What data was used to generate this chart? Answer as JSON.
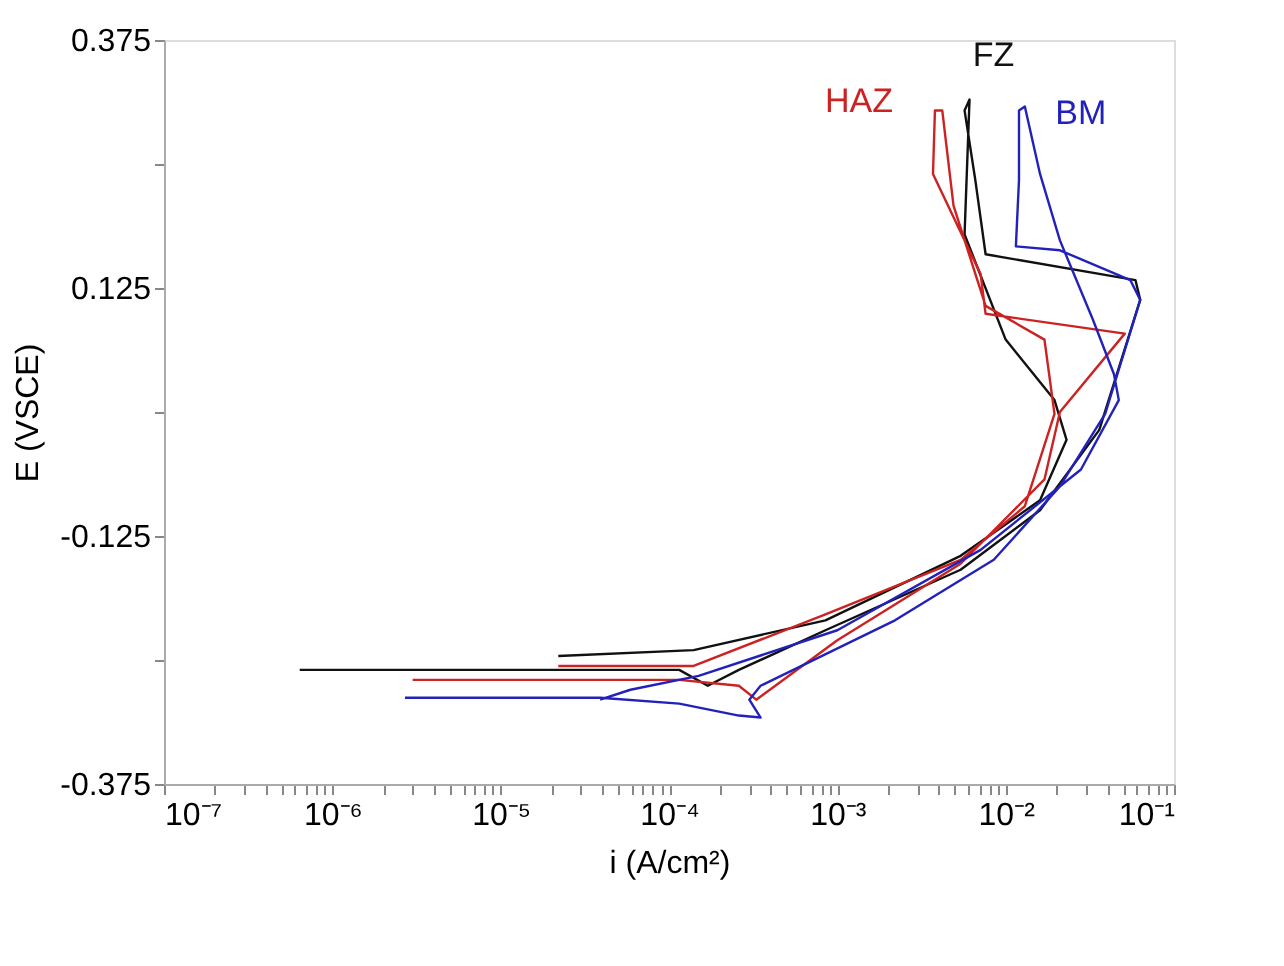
{
  "chart_data": {
    "type": "line",
    "xlabel": "i (A/cm²)",
    "ylabel": "E (VSCE)",
    "log": "x",
    "grid": false,
    "legend": false,
    "marker": "none",
    "line_style": "solid",
    "xlim": [
      1e-07,
      0.1
    ],
    "ylim": [
      -0.375,
      0.375
    ],
    "xticks": [
      {
        "value": 1e-07,
        "label": "10⁻⁷"
      },
      {
        "value": 2e-07,
        "label": null
      },
      {
        "value": 3e-07,
        "label": null
      },
      {
        "value": 4e-07,
        "label": null
      },
      {
        "value": 5e-07,
        "label": null
      },
      {
        "value": 6e-07,
        "label": null
      },
      {
        "value": 7e-07,
        "label": null
      },
      {
        "value": 8e-07,
        "label": null
      },
      {
        "value": 9e-07,
        "label": null
      },
      {
        "value": 1e-06,
        "label": "10⁻⁶"
      },
      {
        "value": 2e-06,
        "label": null
      },
      {
        "value": 3e-06,
        "label": null
      },
      {
        "value": 4e-06,
        "label": null
      },
      {
        "value": 5e-06,
        "label": null
      },
      {
        "value": 6e-06,
        "label": null
      },
      {
        "value": 7e-06,
        "label": null
      },
      {
        "value": 8e-06,
        "label": null
      },
      {
        "value": 9e-06,
        "label": null
      },
      {
        "value": 1e-05,
        "label": "10⁻⁵"
      },
      {
        "value": 2e-05,
        "label": null
      },
      {
        "value": 3e-05,
        "label": null
      },
      {
        "value": 4e-05,
        "label": null
      },
      {
        "value": 5e-05,
        "label": null
      },
      {
        "value": 6e-05,
        "label": null
      },
      {
        "value": 7e-05,
        "label": null
      },
      {
        "value": 8e-05,
        "label": null
      },
      {
        "value": 9e-05,
        "label": null
      },
      {
        "value": 0.0001,
        "label": "10⁻⁴"
      },
      {
        "value": 0.0002,
        "label": null
      },
      {
        "value": 0.0003,
        "label": null
      },
      {
        "value": 0.0004,
        "label": null
      },
      {
        "value": 0.0005,
        "label": null
      },
      {
        "value": 0.0006,
        "label": null
      },
      {
        "value": 0.0007,
        "label": null
      },
      {
        "value": 0.0008,
        "label": null
      },
      {
        "value": 0.0009,
        "label": null
      },
      {
        "value": 0.001,
        "label": "10⁻³"
      },
      {
        "value": 0.002,
        "label": null
      },
      {
        "value": 0.003,
        "label": null
      },
      {
        "value": 0.004,
        "label": null
      },
      {
        "value": 0.005,
        "label": null
      },
      {
        "value": 0.006,
        "label": null
      },
      {
        "value": 0.007,
        "label": null
      },
      {
        "value": 0.008,
        "label": null
      },
      {
        "value": 0.009,
        "label": null
      },
      {
        "value": 0.01,
        "label": "10⁻²"
      },
      {
        "value": 0.02,
        "label": null
      },
      {
        "value": 0.03,
        "label": null
      },
      {
        "value": 0.04,
        "label": null
      },
      {
        "value": 0.05,
        "label": null
      },
      {
        "value": 0.06,
        "label": null
      },
      {
        "value": 0.07,
        "label": null
      },
      {
        "value": 0.08,
        "label": null
      },
      {
        "value": 0.09,
        "label": null
      },
      {
        "value": 0.1,
        "label": "10⁻¹"
      }
    ],
    "yticks": [
      -0.375,
      {
        "value": -0.25,
        "label": null
      },
      -0.125,
      {
        "value": 0,
        "label": null
      },
      0.125,
      {
        "value": 0.25,
        "label": null
      },
      0.375
    ],
    "series": [
      {
        "name": "FZ",
        "color": "#111111",
        "x": [
          6.4e-07,
          0.000115,
          0.00017,
          0.00026,
          0.00085,
          0.0054,
          0.016,
          0.036,
          0.063,
          0.059,
          0.0076,
          0.0066,
          0.0057,
          0.0061,
          0.0057,
          0.01,
          0.0195,
          0.023,
          0.016,
          0.0054,
          0.00085,
          0.00014,
          2.2e-05
        ],
        "values": [
          -0.26,
          -0.26,
          -0.276,
          -0.26,
          -0.22,
          -0.159,
          -0.099,
          -0.018,
          0.113,
          0.133,
          0.159,
          0.234,
          0.304,
          0.315,
          0.179,
          0.073,
          0.012,
          -0.028,
          -0.089,
          -0.145,
          -0.21,
          -0.24,
          -0.246
        ]
      },
      {
        "name": "HAZ",
        "color": "#cc2222",
        "x": [
          3e-06,
          0.000115,
          0.00026,
          0.00033,
          0.001,
          0.0054,
          0.017,
          0.021,
          0.051,
          0.0076,
          0.0071,
          0.0037,
          0.0038,
          0.0042,
          0.0049,
          0.0076,
          0.017,
          0.0195,
          0.013,
          0.0054,
          0.00085,
          0.00014,
          2.2e-05
        ],
        "values": [
          -0.27,
          -0.27,
          -0.276,
          -0.29,
          -0.23,
          -0.153,
          -0.068,
          0.0,
          0.079,
          0.099,
          0.139,
          0.24,
          0.304,
          0.304,
          0.208,
          0.107,
          0.073,
          -0.002,
          -0.095,
          -0.149,
          -0.204,
          -0.256,
          -0.256
        ]
      },
      {
        "name": "BM",
        "color": "#2222bb",
        "x": [
          2.7e-06,
          3.9e-05,
          0.000115,
          0.00026,
          0.00035,
          0.0003,
          0.00035,
          0.0022,
          0.0085,
          0.021,
          0.039,
          0.063,
          0.055,
          0.021,
          0.0115,
          0.012,
          0.012,
          0.013,
          0.016,
          0.021,
          0.033,
          0.044,
          0.047,
          0.028,
          0.0071,
          0.001,
          0.00015,
          5.9e-05,
          3.9e-05
        ],
        "values": [
          -0.288,
          -0.288,
          -0.294,
          -0.306,
          -0.308,
          -0.29,
          -0.276,
          -0.21,
          -0.149,
          -0.075,
          -0.002,
          0.113,
          0.133,
          0.163,
          0.167,
          0.234,
          0.304,
          0.308,
          0.24,
          0.173,
          0.093,
          0.038,
          0.012,
          -0.058,
          -0.139,
          -0.22,
          -0.266,
          -0.28,
          -0.29
        ]
      }
    ]
  }
}
